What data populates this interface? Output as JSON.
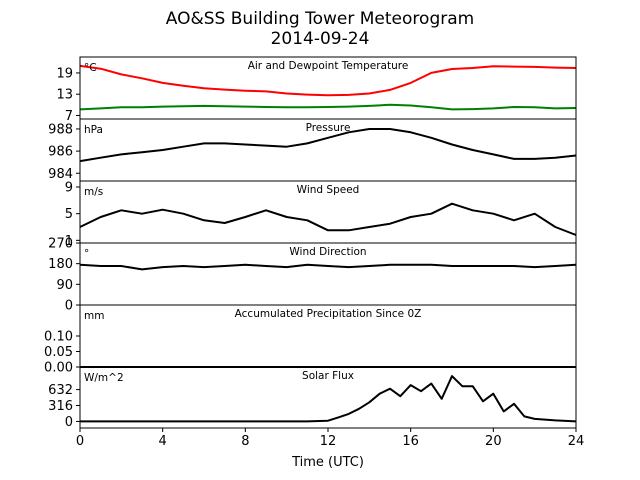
{
  "figure": {
    "title_line1": "AO&SS Building Tower Meteorogram",
    "title_line2": "2014-09-24",
    "xlabel": "Time (UTC)",
    "x_ticks": [
      0,
      4,
      8,
      12,
      16,
      20,
      24
    ],
    "xlim": [
      0,
      24
    ]
  },
  "chart_data": [
    {
      "type": "line",
      "title": "Air and Dewpoint Temperature",
      "unit": "°C",
      "ylim": [
        6,
        23.5
      ],
      "y_ticks": [
        7,
        13,
        19
      ],
      "series": [
        {
          "color": "#ff0000",
          "x": [
            0,
            1,
            2,
            3,
            4,
            5,
            6,
            7,
            8,
            9,
            10,
            11,
            12,
            13,
            14,
            15,
            16,
            17,
            18,
            19,
            20,
            21,
            22,
            23,
            24
          ],
          "values": [
            21,
            20.2,
            18.6,
            17.5,
            16.2,
            15.4,
            14.7,
            14.3,
            14.0,
            13.8,
            13.2,
            12.9,
            12.7,
            12.8,
            13.2,
            14.2,
            16.2,
            19.0,
            20.1,
            20.4,
            20.9,
            20.8,
            20.7,
            20.5,
            20.4
          ]
        },
        {
          "color": "#008000",
          "x": [
            0,
            1,
            2,
            3,
            4,
            5,
            6,
            7,
            8,
            9,
            10,
            11,
            12,
            13,
            14,
            15,
            16,
            17,
            18,
            19,
            20,
            21,
            22,
            23,
            24
          ],
          "values": [
            8.7,
            9.0,
            9.3,
            9.3,
            9.5,
            9.6,
            9.7,
            9.6,
            9.5,
            9.4,
            9.3,
            9.3,
            9.4,
            9.5,
            9.7,
            10.0,
            9.8,
            9.3,
            8.7,
            8.8,
            9.0,
            9.4,
            9.3,
            9.0,
            9.1
          ]
        }
      ]
    },
    {
      "type": "line",
      "title": "Pressure",
      "unit": "hPa",
      "ylim": [
        983.3,
        988.9
      ],
      "y_ticks": [
        984,
        986,
        988
      ],
      "series": [
        {
          "color": "#000000",
          "x": [
            0,
            1,
            2,
            3,
            4,
            5,
            6,
            7,
            8,
            9,
            10,
            11,
            12,
            13,
            14,
            15,
            16,
            17,
            18,
            19,
            20,
            21,
            22,
            23,
            24
          ],
          "values": [
            985.1,
            985.4,
            985.7,
            985.9,
            986.1,
            986.4,
            986.7,
            986.7,
            986.6,
            986.5,
            986.4,
            986.7,
            987.2,
            987.7,
            988.0,
            988.0,
            987.7,
            987.2,
            986.6,
            986.1,
            985.7,
            985.3,
            985.3,
            985.4,
            985.6
          ]
        }
      ]
    },
    {
      "type": "line",
      "title": "Wind Speed",
      "unit": "m/s",
      "ylim": [
        0.6,
        9.9
      ],
      "y_ticks": [
        1,
        5,
        9
      ],
      "series": [
        {
          "color": "#000000",
          "x": [
            0,
            1,
            2,
            3,
            4,
            5,
            6,
            7,
            8,
            9,
            10,
            11,
            12,
            13,
            14,
            15,
            16,
            17,
            18,
            19,
            20,
            21,
            22,
            23,
            24
          ],
          "values": [
            3.0,
            4.5,
            5.5,
            5.0,
            5.6,
            5.0,
            4.0,
            3.6,
            4.5,
            5.5,
            4.5,
            4.0,
            2.5,
            2.5,
            3.0,
            3.5,
            4.5,
            5.0,
            6.5,
            5.5,
            5.0,
            4.0,
            5.0,
            3.0,
            1.8
          ]
        }
      ]
    },
    {
      "type": "line",
      "title": "Wind Direction",
      "unit": "°",
      "ylim": [
        0,
        270
      ],
      "y_ticks": [
        0,
        90,
        180,
        270
      ],
      "series": [
        {
          "color": "#000000",
          "x": [
            0,
            1,
            2,
            3,
            4,
            5,
            6,
            7,
            8,
            9,
            10,
            11,
            12,
            13,
            14,
            15,
            16,
            17,
            18,
            19,
            20,
            21,
            22,
            23,
            24
          ],
          "values": [
            175,
            170,
            170,
            155,
            165,
            170,
            165,
            170,
            175,
            170,
            165,
            175,
            170,
            165,
            170,
            175,
            175,
            175,
            170,
            170,
            170,
            170,
            165,
            170,
            175
          ]
        }
      ]
    },
    {
      "type": "line",
      "title": "Accumulated Precipitation Since 0Z",
      "unit": "mm",
      "ylim": [
        0,
        0.2
      ],
      "y_ticks": [
        0.0,
        0.05,
        0.1
      ],
      "y_tick_labels": [
        "0.00",
        "0.05",
        "0.10"
      ],
      "series": [
        {
          "color": "#000000",
          "x": [
            0,
            24
          ],
          "values": [
            0,
            0
          ]
        }
      ]
    },
    {
      "type": "line",
      "title": "Solar Flux",
      "unit": "W/m^2",
      "ylim": [
        -130,
        1080
      ],
      "y_ticks": [
        0,
        316,
        632
      ],
      "series": [
        {
          "color": "#000000",
          "x": [
            0,
            1,
            2,
            3,
            4,
            5,
            6,
            7,
            8,
            9,
            10,
            11,
            12,
            12.5,
            13,
            13.5,
            14,
            14.5,
            15,
            15.5,
            16,
            16.5,
            17,
            17.5,
            18,
            18.5,
            19,
            19.5,
            20,
            20.5,
            21,
            21.5,
            22,
            23,
            24
          ],
          "values": [
            0,
            0,
            0,
            0,
            0,
            0,
            0,
            0,
            0,
            0,
            0,
            0,
            15,
            80,
            150,
            250,
            380,
            550,
            650,
            500,
            720,
            600,
            750,
            450,
            900,
            700,
            700,
            400,
            550,
            200,
            350,
            100,
            50,
            20,
            0
          ]
        }
      ]
    }
  ]
}
